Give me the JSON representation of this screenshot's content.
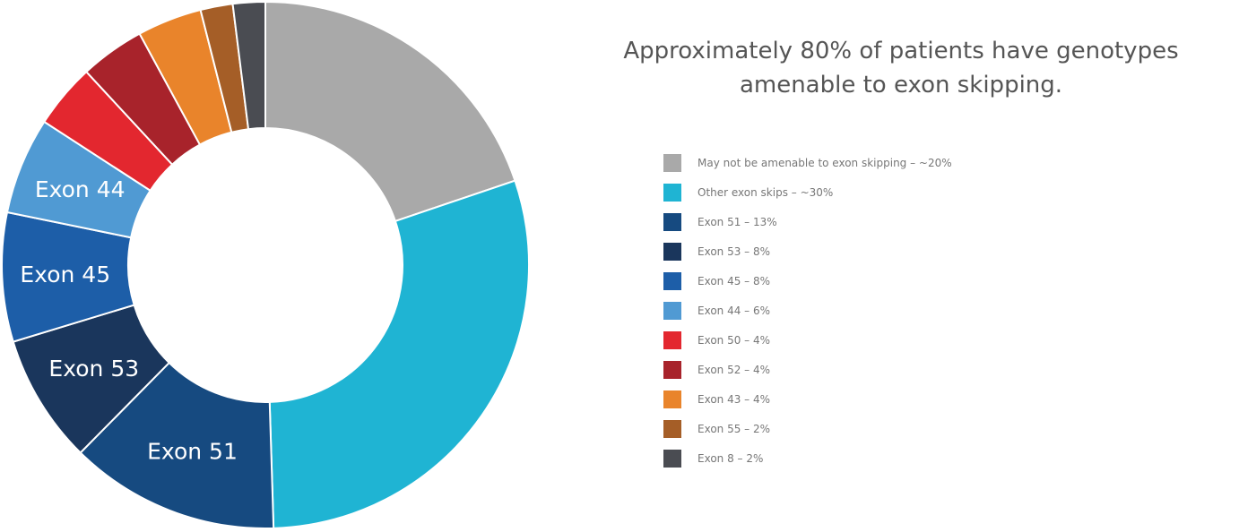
{
  "chart_data": {
    "type": "pie",
    "style": "donut",
    "title": "Approximately 80% of patients have genotypes amenable to exon skipping.",
    "legend_position": "right",
    "slices": [
      {
        "label": "May not be amenable to exon skipping – ~20%",
        "value": 20,
        "color": "#a9a9a9",
        "slice_label": ""
      },
      {
        "label": "Other exon skips – ~30%",
        "value": 30,
        "color": "#1fb4d3",
        "slice_label": ""
      },
      {
        "label": "Exon 51 – 13%",
        "value": 13,
        "color": "#164a80",
        "slice_label": "Exon 51"
      },
      {
        "label": "Exon 53 – 8%",
        "value": 8,
        "color": "#1a365c",
        "slice_label": "Exon 53"
      },
      {
        "label": "Exon 45 – 8%",
        "value": 8,
        "color": "#1d5ea8",
        "slice_label": "Exon 45"
      },
      {
        "label": "Exon 44 – 6%",
        "value": 6,
        "color": "#509ad3",
        "slice_label": "Exon 44"
      },
      {
        "label": "Exon 50 – 4%",
        "value": 4,
        "color": "#e3272f",
        "slice_label": ""
      },
      {
        "label": "Exon 52 – 4%",
        "value": 4,
        "color": "#a8232b",
        "slice_label": ""
      },
      {
        "label": "Exon 43 – 4%",
        "value": 4,
        "color": "#e9842b",
        "slice_label": ""
      },
      {
        "label": "Exon 55 – 2%",
        "value": 2,
        "color": "#a55e27",
        "slice_label": ""
      },
      {
        "label": "Exon 8 – 2%",
        "value": 2,
        "color": "#4a4c52",
        "slice_label": ""
      }
    ]
  }
}
